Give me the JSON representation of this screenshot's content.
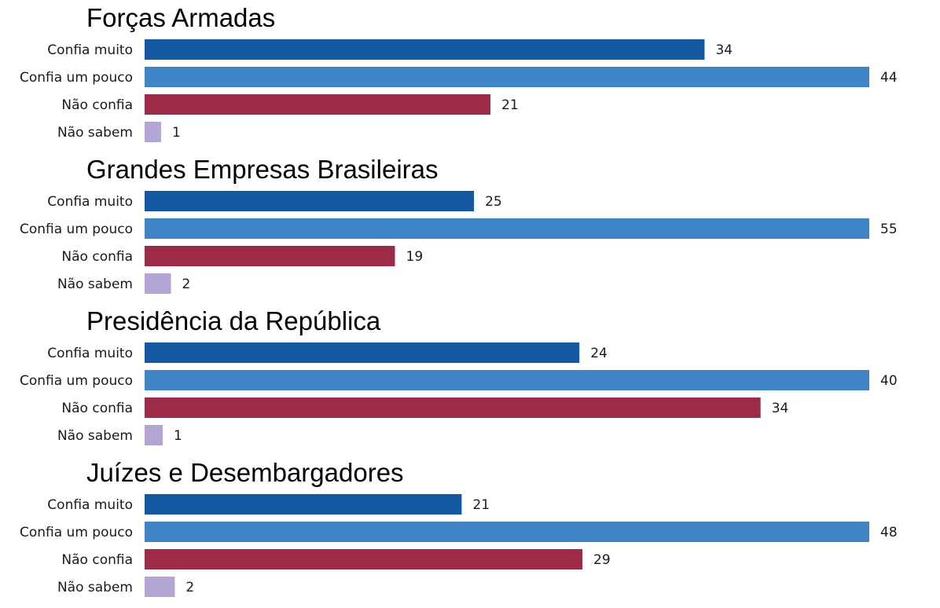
{
  "chart_data": [
    {
      "type": "bar",
      "orientation": "horizontal",
      "title": "Forças Armadas",
      "categories": [
        "Confia muito",
        "Confia um pouco",
        "Não confia",
        "Não sabem"
      ],
      "values": [
        34,
        44,
        21,
        1
      ],
      "colors": [
        "#1559a3",
        "#3e84c6",
        "#9c2a49",
        "#b3a6d5"
      ]
    },
    {
      "type": "bar",
      "orientation": "horizontal",
      "title": "Grandes Empresas Brasileiras",
      "categories": [
        "Confia muito",
        "Confia um pouco",
        "Não confia",
        "Não sabem"
      ],
      "values": [
        25,
        55,
        19,
        2
      ],
      "colors": [
        "#1559a3",
        "#3e84c6",
        "#9c2a49",
        "#b3a6d5"
      ]
    },
    {
      "type": "bar",
      "orientation": "horizontal",
      "title": "Presidência da República",
      "categories": [
        "Confia muito",
        "Confia um pouco",
        "Não confia",
        "Não sabem"
      ],
      "values": [
        24,
        40,
        34,
        1
      ],
      "colors": [
        "#1559a3",
        "#3e84c6",
        "#9c2a49",
        "#b3a6d5"
      ]
    },
    {
      "type": "bar",
      "orientation": "horizontal",
      "title": "Juízes e Desembargadores",
      "categories": [
        "Confia muito",
        "Confia um pouco",
        "Não confia",
        "Não sabem"
      ],
      "values": [
        21,
        48,
        29,
        2
      ],
      "colors": [
        "#1559a3",
        "#3e84c6",
        "#9c2a49",
        "#b3a6d5"
      ]
    }
  ]
}
